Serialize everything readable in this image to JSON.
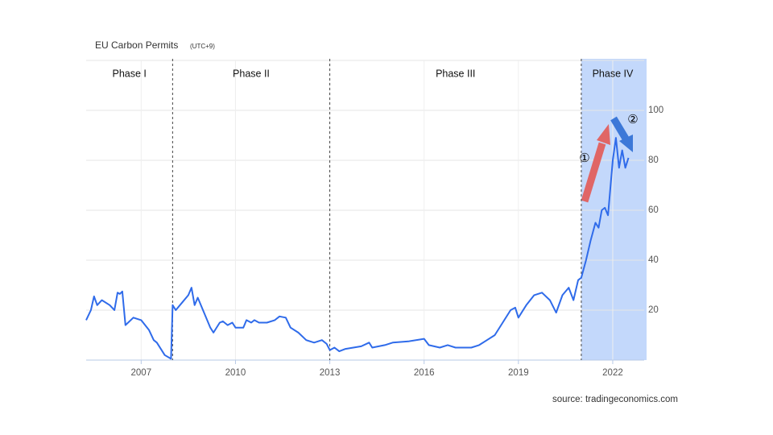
{
  "chart_data": {
    "type": "line",
    "title": "EU Carbon Permits",
    "subtitle": "(UTC+9)",
    "source": "source: tradingeconomics.com",
    "color": "#2f6bea",
    "x": [
      2005.25,
      2005.4,
      2005.5,
      2005.6,
      2005.75,
      2006.0,
      2006.15,
      2006.25,
      2006.32,
      2006.4,
      2006.5,
      2006.75,
      2007.0,
      2007.25,
      2007.4,
      2007.5,
      2007.75,
      2007.95,
      2008.0,
      2008.1,
      2008.3,
      2008.5,
      2008.6,
      2008.7,
      2008.8,
      2009.0,
      2009.2,
      2009.3,
      2009.5,
      2009.6,
      2009.75,
      2009.9,
      2010.0,
      2010.25,
      2010.35,
      2010.5,
      2010.6,
      2010.75,
      2011.0,
      2011.25,
      2011.4,
      2011.6,
      2011.75,
      2012.0,
      2012.25,
      2012.5,
      2012.75,
      2012.9,
      2013.0,
      2013.15,
      2013.3,
      2013.5,
      2014.0,
      2014.25,
      2014.35,
      2014.75,
      2015.0,
      2015.5,
      2016.0,
      2016.15,
      2016.5,
      2016.75,
      2017.0,
      2017.5,
      2017.75,
      2018.0,
      2018.25,
      2018.5,
      2018.75,
      2018.9,
      2019.0,
      2019.25,
      2019.5,
      2019.75,
      2020.0,
      2020.2,
      2020.4,
      2020.6,
      2020.75,
      2020.9,
      2021.0,
      2021.15,
      2021.3,
      2021.45,
      2021.55,
      2021.65,
      2021.75,
      2021.85,
      2022.0,
      2022.1,
      2022.2,
      2022.3,
      2022.4,
      2022.5
    ],
    "values": [
      16,
      20,
      25.5,
      22,
      24,
      22,
      20,
      27,
      26.5,
      27.5,
      14,
      17,
      16,
      12,
      8,
      7,
      2,
      0.5,
      22,
      20,
      23,
      26,
      29,
      22,
      25,
      19,
      13,
      11,
      15,
      15.5,
      14,
      15,
      13,
      13,
      16,
      15,
      16,
      15,
      15,
      16,
      17.5,
      17,
      13,
      11,
      8,
      7,
      8,
      6.5,
      4,
      5,
      3.5,
      4.5,
      5.5,
      7,
      5,
      6,
      7,
      7.5,
      8.5,
      6,
      5,
      6,
      5,
      5,
      6,
      8,
      10,
      15,
      20,
      21,
      17,
      22,
      26,
      27,
      24,
      19,
      26,
      29,
      24,
      32,
      33,
      40,
      48,
      55,
      53,
      60,
      61,
      58,
      80,
      89,
      77,
      84,
      77,
      81
    ],
    "xlim": [
      2005.25,
      2023.0
    ],
    "ylim": [
      0,
      120
    ],
    "xticks": [
      2007,
      2010,
      2013,
      2016,
      2019,
      2022
    ],
    "yticks": [
      20,
      40,
      60,
      80,
      100
    ],
    "grid": true,
    "phases": [
      "Phase I",
      "Phase II",
      "Phase III",
      "Phase IV"
    ],
    "phase_starts": [
      2008,
      2013,
      2021
    ],
    "annotations": [
      "①",
      "②"
    ]
  }
}
